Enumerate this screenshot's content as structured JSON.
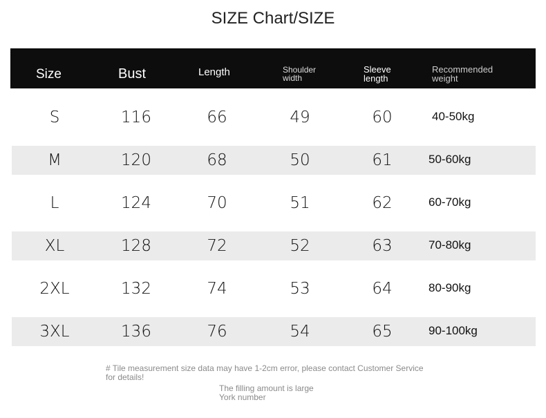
{
  "title": "SIZE Chart/SIZE",
  "table": {
    "headers": [
      "Size",
      "Bust",
      "Length",
      "Shoulder width",
      "Sleeve length",
      "Recommended weight"
    ],
    "rows": [
      [
        "S",
        116,
        66,
        49,
        60,
        "40-50kg"
      ],
      [
        "M",
        120,
        68,
        50,
        61,
        "50-60kg"
      ],
      [
        "L",
        124,
        70,
        51,
        62,
        "60-70kg"
      ],
      [
        "XL",
        128,
        72,
        52,
        63,
        "70-80kg"
      ],
      [
        "2XL",
        132,
        74,
        53,
        64,
        "80-90kg"
      ],
      [
        "3XL",
        136,
        76,
        54,
        65,
        "90-100kg"
      ]
    ]
  },
  "notes": [
    "# Tile measurement size data may have 1-2cm error, please contact Customer Service for details!",
    "The filling amount is large York number"
  ]
}
